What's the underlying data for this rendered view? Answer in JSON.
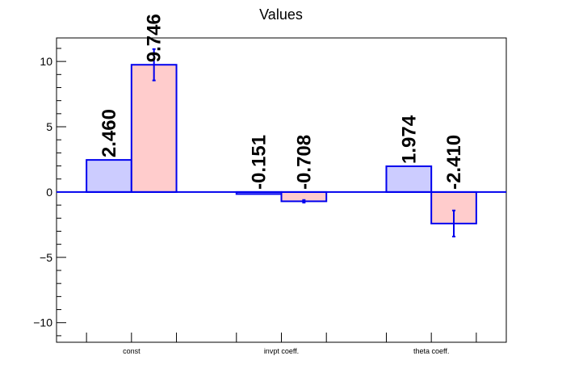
{
  "chart_data": {
    "type": "bar",
    "title": "Values",
    "categories": [
      "const",
      "invpt coeff.",
      "theta coeff."
    ],
    "series": [
      {
        "values": [
          2.46,
          -0.151,
          1.974
        ],
        "labels": [
          "2.460",
          "-0.151",
          "1.974"
        ],
        "errors": [
          0,
          0,
          0
        ],
        "fill": "#ccccff",
        "stroke": "#0000ee"
      },
      {
        "values": [
          9.746,
          -0.708,
          -2.41
        ],
        "labels": [
          "9.746",
          "-0.708",
          "-2.410"
        ],
        "errors": [
          1.2,
          0.1,
          1.0
        ],
        "fill": "#ffcccc",
        "stroke": "#0000ee"
      }
    ],
    "ylim": [
      -11.5,
      11.8
    ],
    "yticks": [
      -10,
      -5,
      0,
      5,
      10
    ],
    "ytick_labels": [
      "−10",
      "−5",
      "0",
      "5",
      "10"
    ],
    "zero_line_color": "#0000ee",
    "grid": false,
    "xlabel": "",
    "ylabel": ""
  }
}
